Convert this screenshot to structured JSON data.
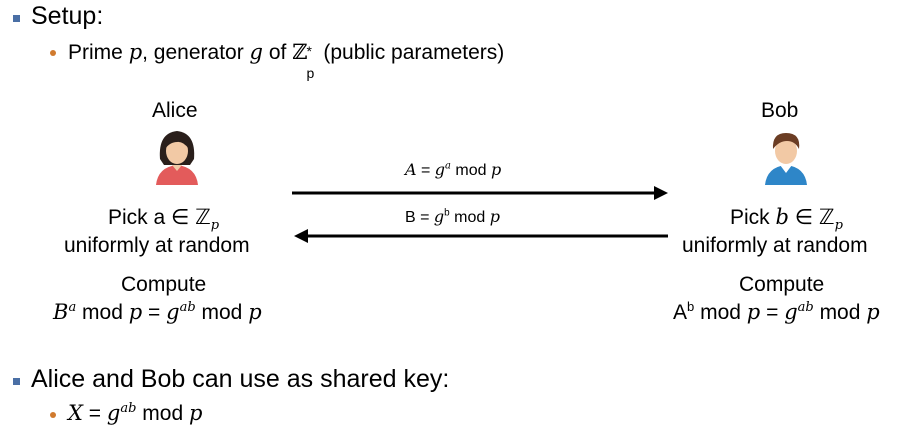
{
  "setup": {
    "heading": "Setup:",
    "line_prefix": "Prime ",
    "p": "p",
    "line_mid": ", generator ",
    "g": "g",
    "line_of": " of ",
    "Z": "ℤ",
    "Z_sup": "*",
    "Z_sub": "p",
    "line_suffix": " (public parameters)"
  },
  "alice": {
    "name": "Alice",
    "pick": "Pick a ∈ ℤ",
    "pick_sub": "p",
    "uniform": "uniformly at random",
    "compute": "Compute",
    "B": "B",
    "B_exp": "a",
    "mod1": " mod ",
    "p1": "p",
    "eq": " = ",
    "g": "g",
    "g_exp": "ab",
    "mod2": " mod ",
    "p2": "p"
  },
  "bob": {
    "name": "Bob",
    "pick": "Pick ",
    "b": "b",
    "pick_rest": " ∈ ℤ",
    "pick_sub": "p",
    "uniform": "uniformly at random",
    "compute": "Compute",
    "A": "A",
    "A_exp": "b",
    "mod1": " mod ",
    "p1": "p",
    "eq": " = ",
    "g": "g",
    "g_exp": "ab",
    "mod2": " mod ",
    "p2": "p"
  },
  "messages": {
    "to_bob": {
      "lhs": "A",
      "eq": " = ",
      "g": "g",
      "exp": "a",
      "mod": " mod ",
      "p": "p"
    },
    "to_alice": {
      "lhs": "B",
      "eq": " = ",
      "g": "g",
      "exp": "b",
      "mod": " mod ",
      "p": "p"
    }
  },
  "shared": {
    "heading": "Alice and Bob can use as shared key:",
    "X": "X",
    "eq": " = ",
    "g": "g",
    "g_exp": "ab",
    "mod": " mod ",
    "p": "p"
  },
  "colors": {
    "bullet_l1": "#4a6fa5",
    "bullet_l2": "#d07a2e",
    "alice_shirt": "#e35b5b",
    "bob_shirt": "#2e86c8",
    "skin": "#f2c9a5"
  }
}
